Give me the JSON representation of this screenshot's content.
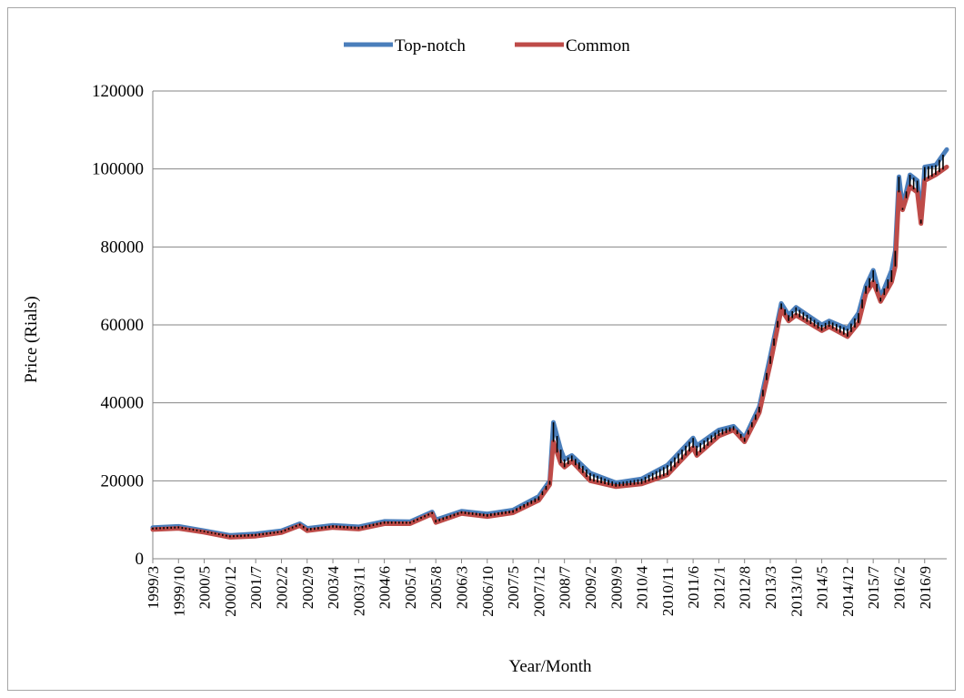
{
  "chart_data": {
    "type": "line",
    "xlabel": "Year/Month",
    "ylabel": "Price (Rials)",
    "ylim": [
      0,
      120000
    ],
    "yticks": [
      0,
      20000,
      40000,
      60000,
      80000,
      100000,
      120000
    ],
    "grid": true,
    "legend_position": "top-center",
    "x_tick_labels": [
      "1999/3",
      "1999/10",
      "2000/5",
      "2000/12",
      "2001/7",
      "2002/2",
      "2002/9",
      "2003/4",
      "2003/11",
      "2004/6",
      "2005/1",
      "2005/8",
      "2006/3",
      "2006/10",
      "2007/5",
      "2007/12",
      "2008/7",
      "2009/2",
      "2009/9",
      "2010/4",
      "2010/11",
      "2011/6",
      "2012/1",
      "2012/8",
      "2013/3",
      "2013/10",
      "2014/5",
      "2014/12",
      "2015/7",
      "2016/2",
      "2016/9"
    ],
    "series": [
      {
        "name": "Top-notch",
        "color": "#4a7ebb",
        "points": [
          [
            "1999/3",
            8000
          ],
          [
            "1999/10",
            8300
          ],
          [
            "2000/5",
            7200
          ],
          [
            "2000/12",
            6000
          ],
          [
            "2001/7",
            6400
          ],
          [
            "2002/2",
            7200
          ],
          [
            "2002/7",
            9000
          ],
          [
            "2002/9",
            7800
          ],
          [
            "2003/4",
            8600
          ],
          [
            "2003/11",
            8200
          ],
          [
            "2004/6",
            9600
          ],
          [
            "2005/1",
            9500
          ],
          [
            "2005/7",
            12000
          ],
          [
            "2005/8",
            10000
          ],
          [
            "2006/3",
            12200
          ],
          [
            "2006/10",
            11500
          ],
          [
            "2007/5",
            12500
          ],
          [
            "2007/12",
            16000
          ],
          [
            "2008/3",
            20000
          ],
          [
            "2008/4",
            35000
          ],
          [
            "2008/6",
            28000
          ],
          [
            "2008/7",
            25500
          ],
          [
            "2008/9",
            26500
          ],
          [
            "2009/2",
            22000
          ],
          [
            "2009/9",
            19500
          ],
          [
            "2010/4",
            20500
          ],
          [
            "2010/11",
            24000
          ],
          [
            "2011/6",
            31000
          ],
          [
            "2011/7",
            29000
          ],
          [
            "2012/1",
            33000
          ],
          [
            "2012/5",
            34000
          ],
          [
            "2012/8",
            31000
          ],
          [
            "2012/12",
            39000
          ],
          [
            "2013/3",
            52000
          ],
          [
            "2013/6",
            65500
          ],
          [
            "2013/8",
            62500
          ],
          [
            "2013/10",
            64500
          ],
          [
            "2014/5",
            60000
          ],
          [
            "2014/7",
            61000
          ],
          [
            "2014/12",
            59000
          ],
          [
            "2015/3",
            63000
          ],
          [
            "2015/5",
            70000
          ],
          [
            "2015/7",
            74000
          ],
          [
            "2015/9",
            67000
          ],
          [
            "2015/12",
            74000
          ],
          [
            "2016/1",
            79000
          ],
          [
            "2016/2",
            98000
          ],
          [
            "2016/3",
            90000
          ],
          [
            "2016/5",
            98500
          ],
          [
            "2016/7",
            97000
          ],
          [
            "2016/8",
            87000
          ],
          [
            "2016/9",
            100500
          ],
          [
            "2016/12",
            101000
          ],
          [
            "2017/3",
            105000
          ]
        ]
      },
      {
        "name": "Common",
        "color": "#be4b48",
        "points": [
          [
            "1999/3",
            7500
          ],
          [
            "1999/10",
            7800
          ],
          [
            "2000/5",
            6800
          ],
          [
            "2000/12",
            5500
          ],
          [
            "2001/7",
            5800
          ],
          [
            "2002/2",
            6700
          ],
          [
            "2002/7",
            8500
          ],
          [
            "2002/9",
            7200
          ],
          [
            "2003/4",
            8000
          ],
          [
            "2003/11",
            7600
          ],
          [
            "2004/6",
            9000
          ],
          [
            "2005/1",
            9000
          ],
          [
            "2005/7",
            11500
          ],
          [
            "2005/8",
            9300
          ],
          [
            "2006/3",
            11600
          ],
          [
            "2006/10",
            10800
          ],
          [
            "2007/5",
            11800
          ],
          [
            "2007/12",
            15000
          ],
          [
            "2008/3",
            19000
          ],
          [
            "2008/4",
            30000
          ],
          [
            "2008/6",
            24500
          ],
          [
            "2008/7",
            23500
          ],
          [
            "2008/9",
            25000
          ],
          [
            "2009/2",
            20000
          ],
          [
            "2009/9",
            18500
          ],
          [
            "2010/4",
            19200
          ],
          [
            "2010/11",
            21500
          ],
          [
            "2011/6",
            28500
          ],
          [
            "2011/7",
            26500
          ],
          [
            "2012/1",
            31500
          ],
          [
            "2012/5",
            33000
          ],
          [
            "2012/8",
            30000
          ],
          [
            "2012/12",
            37500
          ],
          [
            "2013/3",
            50000
          ],
          [
            "2013/6",
            64000
          ],
          [
            "2013/8",
            61000
          ],
          [
            "2013/10",
            62500
          ],
          [
            "2014/5",
            58500
          ],
          [
            "2014/7",
            59500
          ],
          [
            "2014/12",
            57000
          ],
          [
            "2015/3",
            60500
          ],
          [
            "2015/5",
            68000
          ],
          [
            "2015/7",
            71000
          ],
          [
            "2015/9",
            66000
          ],
          [
            "2015/12",
            71000
          ],
          [
            "2016/1",
            75000
          ],
          [
            "2016/2",
            94000
          ],
          [
            "2016/3",
            89500
          ],
          [
            "2016/5",
            95500
          ],
          [
            "2016/7",
            94000
          ],
          [
            "2016/8",
            86000
          ],
          [
            "2016/9",
            97000
          ],
          [
            "2016/12",
            98500
          ],
          [
            "2017/3",
            100500
          ]
        ]
      }
    ]
  }
}
